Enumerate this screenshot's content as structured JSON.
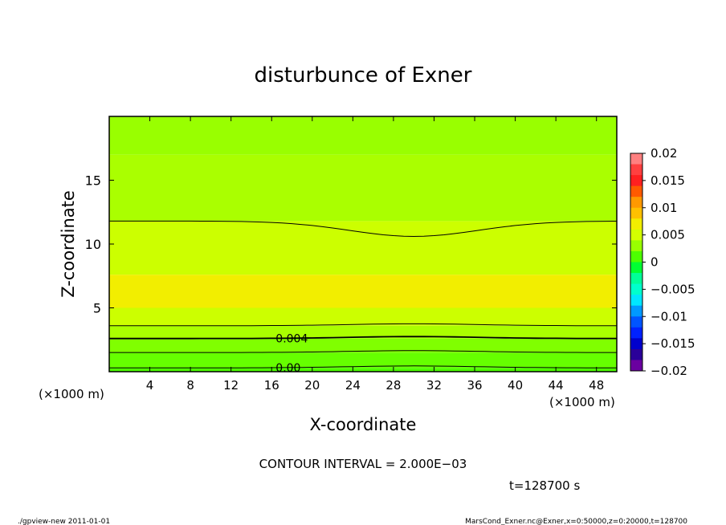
{
  "chart_data": {
    "type": "heatmap",
    "title": "disturbunce of Exner",
    "xlabel": "X-coordinate",
    "ylabel": "Z-coordinate",
    "x_unit_label": "(×1000 m)",
    "y_unit_label": "(×1000 m)",
    "xlim": [
      0,
      50
    ],
    "ylim": [
      0,
      20
    ],
    "x_ticks": [
      4,
      8,
      12,
      16,
      20,
      24,
      28,
      32,
      36,
      40,
      44,
      48
    ],
    "y_ticks": [
      5,
      10,
      15
    ],
    "colorbar": {
      "ticks": [
        0.02,
        0.015,
        0.01,
        0.005,
        0,
        -0.005,
        -0.01,
        -0.015,
        -0.02
      ],
      "tick_labels": [
        "0.02",
        "0.015",
        "0.01",
        "0.005",
        "0",
        "−0.005",
        "−0.01",
        "−0.015",
        "−0.02"
      ],
      "range": [
        -0.02,
        0.02
      ],
      "colors": [
        "#ff8080",
        "#ff4040",
        "#ff2020",
        "#ff5a00",
        "#ff9900",
        "#ffc000",
        "#f2ee00",
        "#d4ff00",
        "#99ff00",
        "#4dff00",
        "#00ff33",
        "#00ff99",
        "#00ffcc",
        "#00e6ff",
        "#0099ff",
        "#0055ff",
        "#0022ff",
        "#0000cc",
        "#2a0099",
        "#6a00a0"
      ]
    },
    "bands": [
      {
        "z_range": [
          0,
          0.3
        ],
        "value": 0.0005,
        "color": "#4dff00"
      },
      {
        "z_range": [
          0.3,
          1.5
        ],
        "value": 0.0025,
        "color": "#66ff00"
      },
      {
        "z_range": [
          1.5,
          2.6
        ],
        "value": 0.0035,
        "color": "#80ff00"
      },
      {
        "z_range": [
          2.6,
          3.6
        ],
        "value": 0.0045,
        "color": "#aaff00"
      },
      {
        "z_range": [
          3.6,
          5.0
        ],
        "value": 0.0052,
        "color": "#ccff00"
      },
      {
        "z_range": [
          5.0,
          7.6
        ],
        "value": 0.0062,
        "color": "#f2ee00"
      },
      {
        "z_range": [
          7.6,
          11.8
        ],
        "value": 0.0052,
        "color": "#ccff00"
      },
      {
        "z_range": [
          11.8,
          17.0
        ],
        "value": 0.0045,
        "color": "#aaff00"
      },
      {
        "z_range": [
          17.0,
          20.0
        ],
        "value": 0.0038,
        "color": "#99ff00"
      }
    ],
    "contour_labels": [
      "0.004",
      "0.00"
    ],
    "contour_interval": "CONTOUR INTERVAL = 2.000E−03",
    "time_label": "t=128700 s"
  },
  "footer": {
    "left": "./gpview-new   2011-01-01",
    "right": "MarsCond_Exner.nc@Exner,x=0:50000,z=0:20000,t=128700"
  }
}
